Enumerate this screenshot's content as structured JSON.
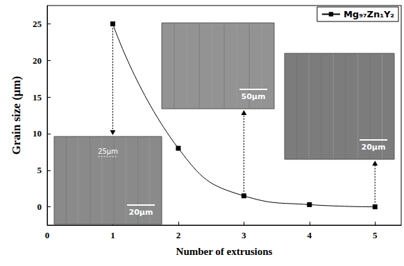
{
  "chart_data": {
    "type": "line",
    "x": [
      1,
      2,
      3,
      4,
      5
    ],
    "series": [
      {
        "name": "Mg₉₇Zn₁Y₂",
        "color": "#000000",
        "values": [
          25,
          8,
          1.5,
          0.3,
          0
        ],
        "marker": "square",
        "line_style": "solid"
      }
    ],
    "x_label": "Number of extrusions",
    "y_label": "Grain size (μm)",
    "xlim": [
      0,
      5.4
    ],
    "xticks": [
      0,
      1,
      2,
      3,
      4,
      5
    ],
    "ylim": [
      -2.5,
      27.5
    ],
    "yticks": [
      0,
      5,
      10,
      15,
      20,
      25
    ],
    "grid": false,
    "legend": "upper right",
    "annotations": [
      {
        "x": 1,
        "y": 25,
        "texts": [
          "20μm",
          "25μm"
        ]
      },
      {
        "x": 3,
        "y": 1.5,
        "texts": [
          "50μm"
        ]
      },
      {
        "x": 5,
        "y": 0,
        "texts": [
          "20μm"
        ]
      }
    ]
  }
}
